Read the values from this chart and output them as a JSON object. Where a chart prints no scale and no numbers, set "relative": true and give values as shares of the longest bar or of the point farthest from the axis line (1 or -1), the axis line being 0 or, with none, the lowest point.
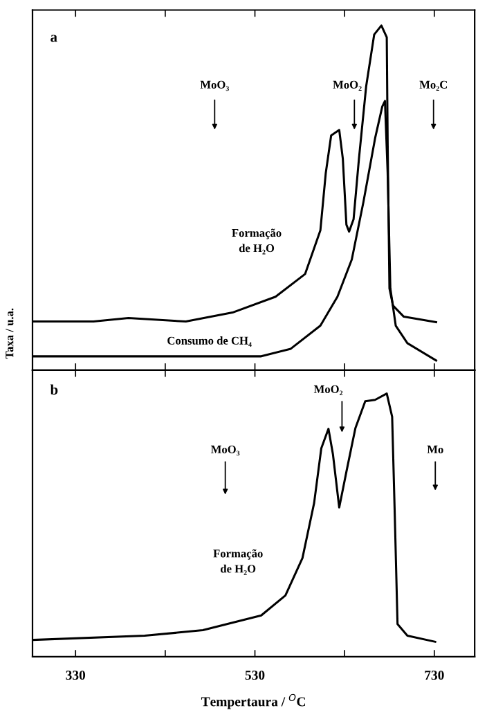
{
  "chart_data": [
    {
      "type": "line",
      "title": "a",
      "ylabel": "Taxa / u.a.",
      "relative": true,
      "xlim": [
        282,
        775
      ],
      "tick_labels": false,
      "grid": false,
      "legend": false,
      "marker": "none",
      "line_style": "solid",
      "series": [
        {
          "name": "Formação\nde H₂O",
          "color": "#000000",
          "x": [
            283,
            350,
            389,
            453,
            505,
            553,
            586,
            603,
            609,
            615,
            624,
            628,
            632,
            635,
            640,
            646,
            654,
            663,
            671,
            677,
            678,
            680,
            684,
            696,
            732
          ],
          "values": [
            0.141,
            0.141,
            0.151,
            0.141,
            0.167,
            0.213,
            0.279,
            0.406,
            0.572,
            0.681,
            0.697,
            0.614,
            0.422,
            0.402,
            0.438,
            0.614,
            0.823,
            0.974,
            1.0,
            0.966,
            0.657,
            0.237,
            0.187,
            0.155,
            0.139
          ]
        },
        {
          "name": "Consumo de CH₄",
          "color": "#000000",
          "x": [
            283,
            400,
            537,
            570,
            603,
            622,
            638,
            651,
            664,
            672,
            675,
            678,
            681,
            687,
            700,
            732
          ],
          "values": [
            0.04,
            0.04,
            0.04,
            0.062,
            0.129,
            0.213,
            0.321,
            0.488,
            0.673,
            0.765,
            0.781,
            0.572,
            0.237,
            0.129,
            0.078,
            0.028
          ]
        }
      ],
      "annotations": [
        "MoO₃",
        "MoO₂",
        "Mo₂C"
      ]
    },
    {
      "type": "line",
      "title": "b",
      "xlabel": "Tempertaura / $^{O}$C",
      "relative": true,
      "xlim": [
        282,
        775
      ],
      "xticks": [
        330,
        {
          "value": 430,
          "label": null
        },
        530,
        {
          "value": 630,
          "label": null
        },
        730
      ],
      "tick_labels": "x",
      "grid": false,
      "legend": false,
      "marker": "none",
      "line_style": "solid",
      "series": [
        {
          "name": "Formação\nde H₂O",
          "color": "#000000",
          "x": [
            283,
            407,
            472,
            537,
            564,
            583,
            596,
            604,
            612,
            617,
            624,
            632,
            642,
            653,
            664,
            677,
            683,
            686,
            689,
            700,
            731
          ],
          "values": [
            0.064,
            0.08,
            0.101,
            0.157,
            0.233,
            0.375,
            0.584,
            0.792,
            0.866,
            0.769,
            0.567,
            0.703,
            0.868,
            0.971,
            0.976,
            1.0,
            0.912,
            0.53,
            0.124,
            0.08,
            0.057
          ]
        }
      ],
      "annotations": [
        "MoO₃",
        "MoO₂",
        "Mo"
      ]
    }
  ]
}
